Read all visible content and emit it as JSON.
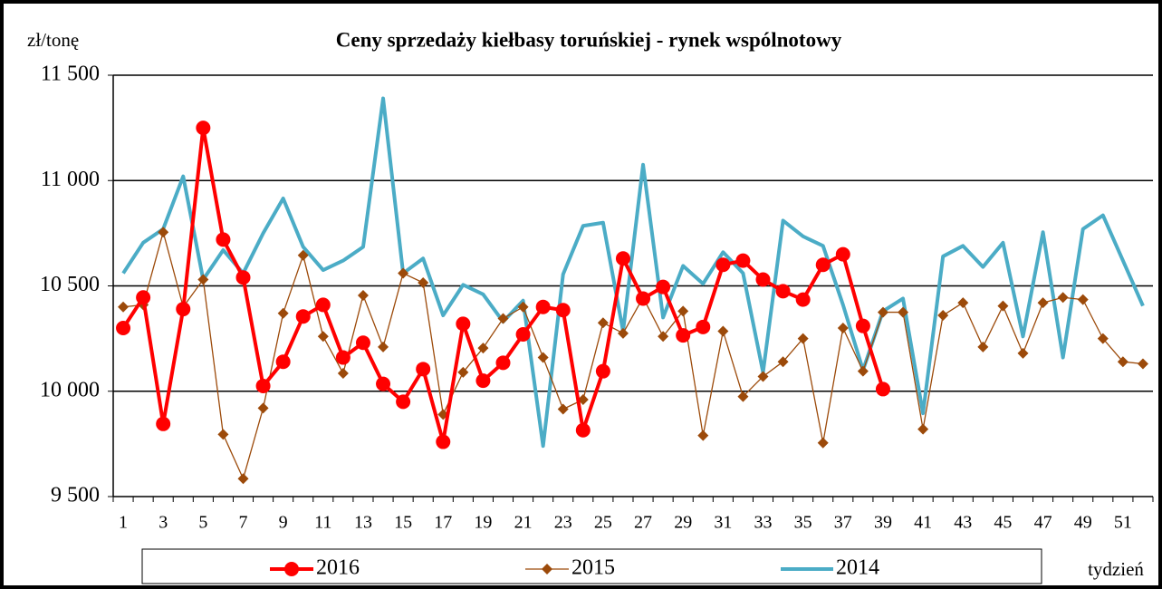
{
  "chart_data": {
    "type": "line",
    "title": "Ceny sprzedaży  kiełbasy toruńskiej  - rynek wspólnotowy",
    "y_label": "zł/tonę",
    "x_label": "tydzień",
    "categories": [
      1,
      null,
      3,
      null,
      5,
      null,
      7,
      null,
      9,
      null,
      11,
      null,
      13,
      null,
      15,
      null,
      17,
      null,
      19,
      null,
      21,
      null,
      23,
      null,
      25,
      null,
      27,
      null,
      29,
      null,
      31,
      null,
      33,
      null,
      35,
      null,
      37,
      null,
      39,
      null,
      41,
      null,
      43,
      null,
      45,
      null,
      47,
      null,
      49,
      null,
      51,
      null
    ],
    "ylim": [
      9500,
      11500
    ],
    "yticks": [
      {
        "value": 9500,
        "label": "9 500"
      },
      {
        "value": 10000,
        "label": "10 000"
      },
      {
        "value": 10500,
        "label": "10 500"
      },
      {
        "value": 11000,
        "label": "11 000"
      },
      {
        "value": 11500,
        "label": "11 500"
      }
    ],
    "grid": true,
    "series": [
      {
        "name": "2016",
        "color": "#ff0000",
        "marker": "circle",
        "values": [
          10300,
          10445,
          9845,
          10390,
          11250,
          10720,
          10540,
          10025,
          10140,
          10355,
          10410,
          10160,
          10230,
          10035,
          9950,
          10105,
          9760,
          10320,
          10050,
          10135,
          10270,
          10400,
          10385,
          9815,
          10095,
          10630,
          10440,
          10495,
          10265,
          10305,
          10600,
          10620,
          10530,
          10475,
          10435,
          10600,
          10650,
          10310,
          10010,
          null,
          null,
          null,
          null,
          null,
          null,
          null,
          null,
          null,
          null,
          null,
          null,
          null
        ]
      },
      {
        "name": "2015",
        "color": "#9c4a0a",
        "marker": "diamond",
        "values": [
          10400,
          10410,
          10755,
          10400,
          10530,
          9795,
          9585,
          9920,
          10370,
          10645,
          10260,
          10085,
          10455,
          10210,
          10560,
          10515,
          9890,
          10090,
          10205,
          10345,
          10400,
          10160,
          9915,
          9960,
          10325,
          10275,
          10445,
          10260,
          10380,
          9790,
          10285,
          9975,
          10070,
          10140,
          10250,
          9755,
          10300,
          10095,
          10375,
          10375,
          9820,
          10360,
          10420,
          10210,
          10405,
          10180,
          10420,
          10445,
          10435,
          10250,
          10140,
          10130
        ]
      },
      {
        "name": "2014",
        "color": "#4bacc6",
        "marker": "none",
        "values": [
          10560,
          10705,
          10770,
          11020,
          10530,
          10670,
          10560,
          10750,
          10915,
          10685,
          10575,
          10620,
          10685,
          11390,
          10560,
          10630,
          10360,
          10505,
          10460,
          10330,
          10430,
          9740,
          10555,
          10785,
          10800,
          10285,
          11075,
          10350,
          10595,
          10510,
          10660,
          10560,
          10090,
          10810,
          10735,
          10690,
          10410,
          10100,
          10380,
          10440,
          9895,
          10640,
          10690,
          10590,
          10705,
          10260,
          10755,
          10160,
          10770,
          10835,
          10620,
          10405
        ]
      }
    ]
  }
}
